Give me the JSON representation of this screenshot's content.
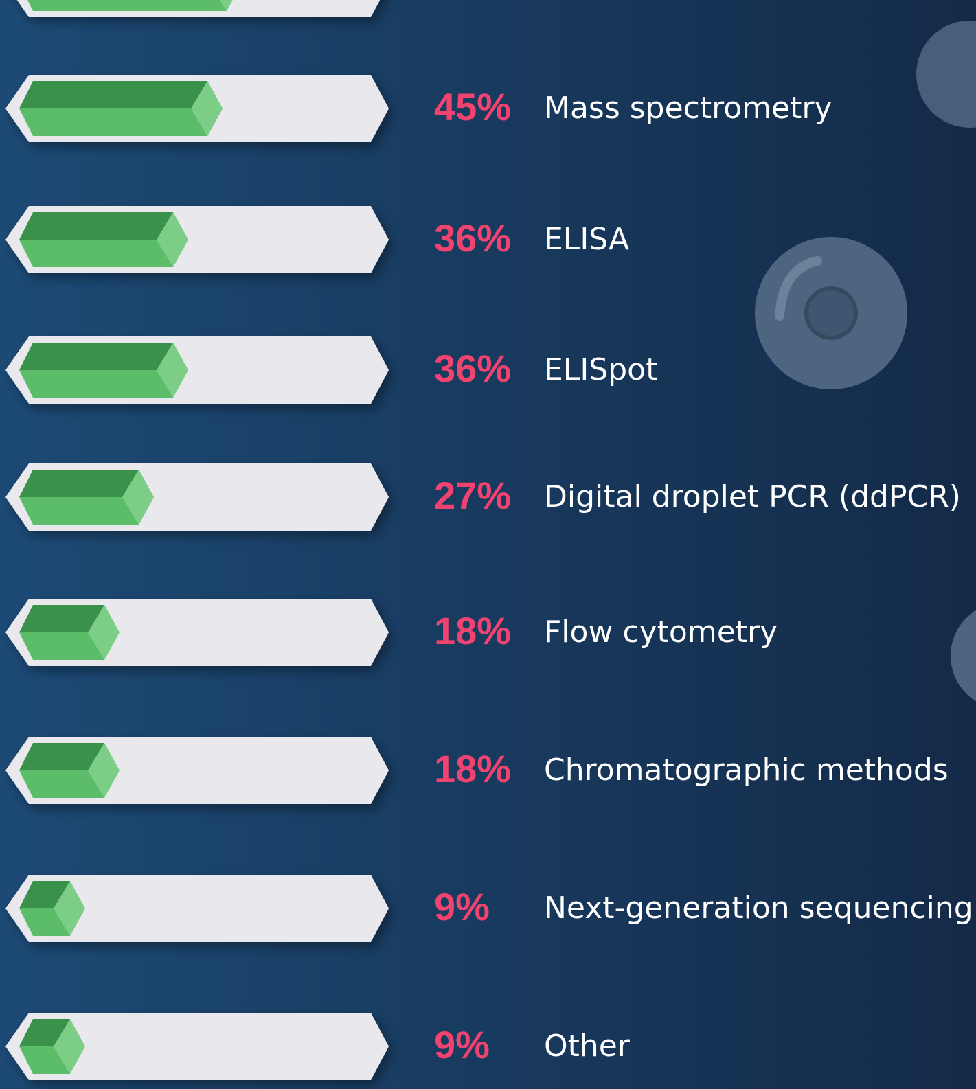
{
  "chart_data": {
    "type": "bar",
    "categories": [
      null,
      "Mass spectrometry",
      "ELISA",
      "ELISpot",
      "Digital droplet PCR (ddPCR)",
      "Flow cytometry",
      "Chromatographic methods",
      "Next-generation sequencing",
      "Other"
    ],
    "values": [
      50,
      45,
      36,
      36,
      27,
      18,
      18,
      9,
      9
    ],
    "value_labels": [
      null,
      "45%",
      "36%",
      "36%",
      "27%",
      "18%",
      "18%",
      "9%",
      "9%"
    ],
    "color": "#5bbd6a"
  }
}
